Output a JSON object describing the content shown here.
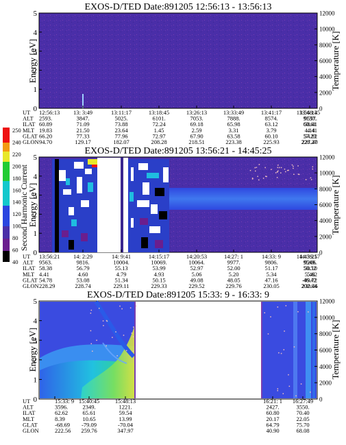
{
  "chart_data": [
    {
      "type": "heatmap",
      "title": "EXOS-D/TED   Date:891205   12:56:13 - 13:56:13",
      "ylabel": "Energy [eV]",
      "ylabel_right": "Temperature [K]",
      "ylim": [
        0,
        5
      ],
      "ylim_right": [
        0,
        12000
      ],
      "yticks": [
        "0",
        "1",
        "2",
        "3",
        "4",
        "5"
      ],
      "yticks_right": [
        "0",
        "2000",
        "4000",
        "6000",
        "8000",
        "10000",
        "12000"
      ],
      "background_color": "#4a2ea8",
      "row_labels": [
        "UT",
        "ALT",
        "ILAT",
        "MLT",
        "GLAT",
        "GLON"
      ],
      "columns": [
        [
          "12:56:13",
          "2593.",
          "60.89",
          "19.83",
          "66.20",
          "94.70"
        ],
        [
          "13: 3:49",
          "3847.",
          "71.09",
          "21.50",
          "77.33",
          "129.17"
        ],
        [
          "13:11:17",
          "5025.",
          "73.88",
          "23.64",
          "77.96",
          "182.07"
        ],
        [
          "13:18:45",
          "6101.",
          "72.24",
          "1.45",
          "72.97",
          "208.28"
        ],
        [
          "13:26:13",
          "7053.",
          "69.18",
          "2.59",
          "67.90",
          "218.51"
        ],
        [
          "13:33:49",
          "7888.",
          "65.98",
          "3.31",
          "63.58",
          "223.38"
        ],
        [
          "13:41:17",
          "8574.",
          "63.12",
          "3.79",
          "60.10",
          "225.93"
        ],
        [
          "13:48:45",
          "9130.",
          "60.61",
          "4.14",
          "57.23",
          "227.40"
        ],
        [
          "13:56:13",
          "9557.",
          "58.41",
          "4.41",
          "54.82",
          "228.27"
        ]
      ]
    },
    {
      "type": "heatmap",
      "title": "EXOS-D/TED   Date:891205   13:56:21 - 14:45:25",
      "ylabel": "Energy [eV]",
      "ylabel_right": "Temperature [K]",
      "ylim": [
        0,
        5
      ],
      "ylim_right": [
        0,
        12000
      ],
      "yticks": [
        "0",
        "1",
        "2",
        "3",
        "4",
        "5"
      ],
      "yticks_right": [
        "0",
        "2000",
        "4000",
        "6000",
        "8000",
        "10000",
        "12000"
      ],
      "background_color": "#4a2ea8",
      "colorbar": {
        "label": "Second Harmonic Current",
        "ticks": [
          "40",
          "60",
          "80",
          "100",
          "120",
          "140",
          "160",
          "180",
          "200",
          "220",
          "240",
          "250"
        ]
      },
      "row_labels": [
        "UT",
        "ALT",
        "ILAT",
        "MLT",
        "GLAT",
        "GLON"
      ],
      "columns": [
        [
          "13:56:21",
          "9563.",
          "58.38",
          "4.41",
          "54.78",
          "228.29"
        ],
        [
          "14: 2:29",
          "9816.",
          "56.79",
          "4.60",
          "53.08",
          "228.74"
        ],
        [
          "14: 9:41",
          "10004.",
          "55.13",
          "4.79",
          "51.34",
          "229.11"
        ],
        [
          "14:15:17",
          "10069.",
          "53.99",
          "4.93",
          "50.15",
          "229.33"
        ],
        [
          "14:20:53",
          "10064.",
          "52.97",
          "5.06",
          "49.08",
          "229.52"
        ],
        [
          "14:27: 1",
          "9977.",
          "52.00",
          "5.20",
          "48.05",
          "229.76"
        ],
        [
          "14:33: 9",
          "9806.",
          "51.17",
          "5.34",
          "47.16",
          "230.05"
        ],
        [
          "14:39:17",
          "9549.",
          "50.52",
          "5.48",
          "46.42",
          "230.46"
        ],
        [
          "14:45:25",
          "9206.",
          "50.10",
          "5.62",
          "-49.72",
          "202.04"
        ]
      ]
    },
    {
      "type": "heatmap",
      "title": "EXOS-D/TED   Date:891205   15:33: 9 - 16:33: 9",
      "ylabel": "Energy [eV]",
      "ylabel_right": "Temperature [K]",
      "ylim": [
        0,
        5
      ],
      "ylim_right": [
        0,
        12000
      ],
      "yticks": [
        "0",
        "1",
        "2",
        "3",
        "4",
        "5"
      ],
      "yticks_right": [
        "0",
        "2000",
        "4000",
        "6000",
        "8000",
        "10000",
        "12000"
      ],
      "background_color": "#3a4be0",
      "row_labels": [
        "UT",
        "ALT",
        "ILAT",
        "MLT",
        "GLAT",
        "GLON"
      ],
      "columns": [
        [
          "15:33: 9",
          "3596.",
          "62.62",
          "8.39",
          "-68.69",
          "222.56"
        ],
        [
          "15:40:45",
          "2349.",
          "65.61",
          "10.65",
          "-79.09",
          "259.76"
        ],
        [
          "15:48:13",
          "1221.",
          "59.54",
          "13.99",
          "-70.04",
          "347.97"
        ],
        [
          "16:21: 1",
          "2427.",
          "60.80",
          "20.17",
          "64.79",
          "40.90"
        ],
        [
          "16:27:49",
          "3550.",
          "70.40",
          "22.05",
          "75.70",
          "68.08"
        ]
      ]
    }
  ]
}
